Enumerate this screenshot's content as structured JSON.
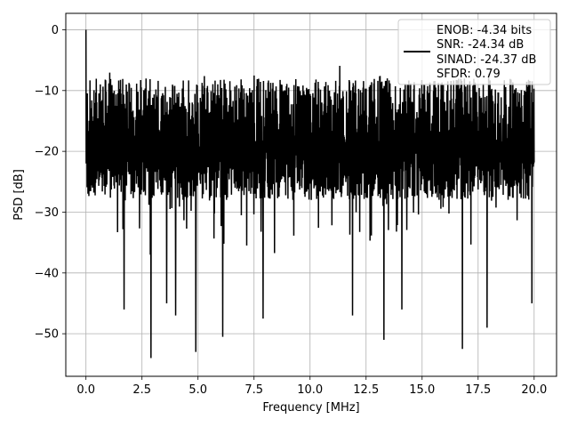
{
  "chart_data": {
    "type": "line",
    "title": "",
    "xlabel": "Frequency [MHz]",
    "ylabel": "PSD [dB]",
    "xlim": [
      -0.9,
      21.0
    ],
    "ylim": [
      -57,
      2.7
    ],
    "xticks": [
      0.0,
      2.5,
      5.0,
      7.5,
      10.0,
      12.5,
      15.0,
      17.5,
      20.0
    ],
    "xtick_labels": [
      "0.0",
      "2.5",
      "5.0",
      "7.5",
      "10.0",
      "12.5",
      "15.0",
      "17.5",
      "20.0"
    ],
    "yticks": [
      0,
      -10,
      -20,
      -30,
      -40,
      -50
    ],
    "ytick_labels": [
      "0",
      "−10",
      "−20",
      "−30",
      "−40",
      "−50"
    ],
    "grid": true,
    "legend_position": "top-right",
    "legend_lines": [
      "ENOB: -4.34 bits",
      "SNR: -24.34 dB",
      "SINAD: -24.37 dB",
      "SFDR: 0.79"
    ],
    "line_color": "#000000",
    "series": [
      {
        "x_start": 0.0,
        "x_end": 20.0,
        "num_points": 2000,
        "upper_envelope_db": -8,
        "lower_envelope_db": -28,
        "peak_at_x0_db": 0,
        "deep_dips": [
          {
            "x": 1.7,
            "y": -46
          },
          {
            "x": 2.9,
            "y": -54
          },
          {
            "x": 3.6,
            "y": -45
          },
          {
            "x": 4.0,
            "y": -47
          },
          {
            "x": 4.9,
            "y": -53
          },
          {
            "x": 6.1,
            "y": -50.5
          },
          {
            "x": 7.9,
            "y": -47.5
          },
          {
            "x": 11.9,
            "y": -47
          },
          {
            "x": 13.3,
            "y": -51
          },
          {
            "x": 14.1,
            "y": -46
          },
          {
            "x": 16.8,
            "y": -52.5
          },
          {
            "x": 17.9,
            "y": -49
          },
          {
            "x": 19.9,
            "y": -45
          }
        ]
      }
    ]
  }
}
